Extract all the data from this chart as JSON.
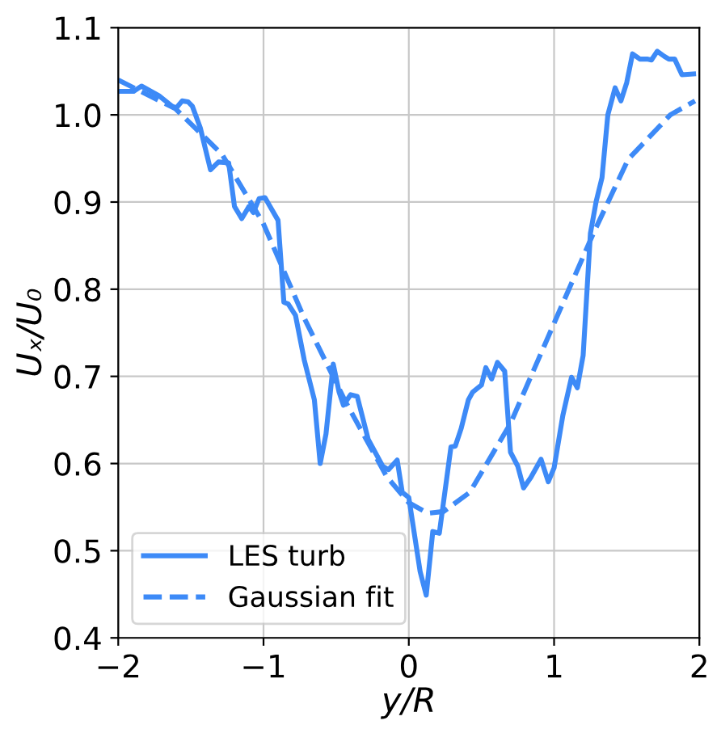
{
  "chart_data": {
    "type": "line",
    "xlabel": "y/R",
    "ylabel": "Uₓ/U₀",
    "xlim": [
      -2,
      2
    ],
    "ylim": [
      0.4,
      1.1
    ],
    "xticks": [
      {
        "value": -2,
        "label": "−2"
      },
      {
        "value": -1,
        "label": "−1"
      },
      0,
      1,
      2
    ],
    "yticks": [
      {
        "value": 0.4,
        "label": "0.4"
      },
      {
        "value": 0.5,
        "label": "0.5"
      },
      {
        "value": 0.6,
        "label": "0.6"
      },
      {
        "value": 0.7,
        "label": "0.7"
      },
      {
        "value": 0.8,
        "label": "0.8"
      },
      {
        "value": 0.9,
        "label": "0.9"
      },
      {
        "value": 1.0,
        "label": "1.0"
      },
      {
        "value": 1.1,
        "label": "1.1"
      }
    ],
    "grid": true,
    "legend": "bottom left",
    "series": [
      {
        "name": "LES turb",
        "color": "#3d8af7",
        "line_style": "solid",
        "x": [
          -2.0,
          -1.894,
          -1.84,
          -1.72,
          -1.63,
          -1.6,
          -1.56,
          -1.52,
          -1.49,
          -1.435,
          -1.4,
          -1.365,
          -1.31,
          -1.24,
          -1.2,
          -1.15,
          -1.1,
          -1.07,
          -1.03,
          -0.99,
          -0.9,
          -0.86,
          -0.83,
          -0.78,
          -0.72,
          -0.65,
          -0.61,
          -0.57,
          -0.52,
          -0.48,
          -0.45,
          -0.4,
          -0.355,
          -0.28,
          -0.18,
          -0.14,
          -0.08,
          -0.045,
          0.0,
          0.078,
          0.12,
          0.165,
          0.21,
          0.29,
          0.32,
          0.36,
          0.41,
          0.44,
          0.5,
          0.53,
          0.57,
          0.61,
          0.66,
          0.7,
          0.75,
          0.79,
          0.84,
          0.91,
          0.96,
          1.0,
          1.06,
          1.12,
          1.16,
          1.2,
          1.25,
          1.29,
          1.33,
          1.37,
          1.42,
          1.46,
          1.5,
          1.54,
          1.59,
          1.64,
          1.67,
          1.71,
          1.76,
          1.79,
          1.83,
          1.88,
          1.96
        ],
        "values": [
          1.027,
          1.027,
          1.033,
          1.022,
          1.01,
          1.008,
          1.016,
          1.015,
          1.01,
          0.985,
          0.961,
          0.937,
          0.946,
          0.945,
          0.895,
          0.881,
          0.895,
          0.888,
          0.904,
          0.905,
          0.879,
          0.785,
          0.783,
          0.77,
          0.719,
          0.673,
          0.6,
          0.634,
          0.714,
          0.682,
          0.667,
          0.679,
          0.677,
          0.628,
          0.597,
          0.593,
          0.604,
          0.567,
          0.561,
          0.476,
          0.449,
          0.522,
          0.52,
          0.619,
          0.62,
          0.64,
          0.673,
          0.682,
          0.69,
          0.71,
          0.697,
          0.716,
          0.706,
          0.613,
          0.597,
          0.572,
          0.584,
          0.605,
          0.579,
          0.595,
          0.655,
          0.699,
          0.687,
          0.724,
          0.864,
          0.901,
          0.928,
          1.0,
          1.031,
          1.016,
          1.037,
          1.07,
          1.064,
          1.064,
          1.063,
          1.073,
          1.067,
          1.064,
          1.064,
          1.046,
          1.047
        ]
      },
      {
        "name": "Gaussian fit",
        "color": "#3d8af7",
        "line_style": "dashed",
        "x": [
          -2.0,
          -1.606,
          -1.287,
          -1.003,
          -0.72,
          -0.436,
          -0.152,
          0.0,
          0.13,
          0.24,
          0.42,
          0.7,
          1.0,
          1.27,
          1.51,
          1.8,
          1.97
        ],
        "values": [
          1.04,
          1.007,
          0.955,
          0.876,
          0.767,
          0.671,
          0.585,
          0.555,
          0.543,
          0.545,
          0.567,
          0.646,
          0.761,
          0.864,
          0.949,
          1.0,
          1.016
        ]
      }
    ]
  }
}
